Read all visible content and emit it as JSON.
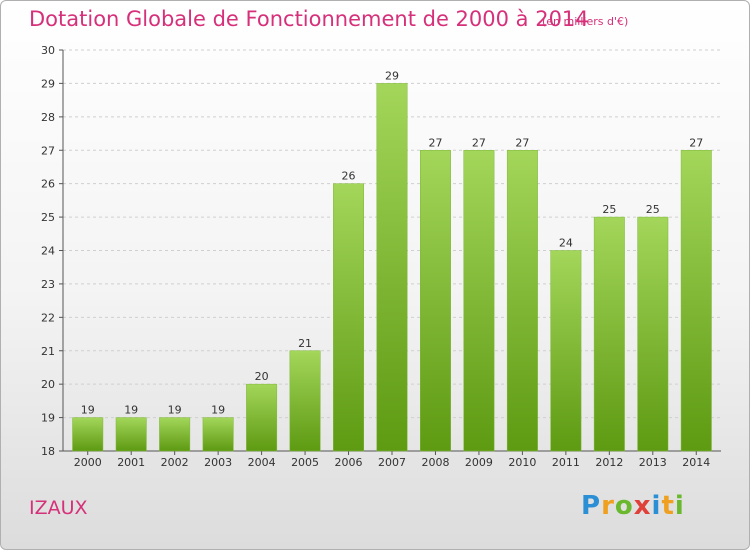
{
  "chart_data": {
    "type": "bar",
    "title": "Dotation Globale de Fonctionnement de 2000 à 2014",
    "unit_note": "(en milliers d'€)",
    "categories": [
      "2000",
      "2001",
      "2002",
      "2003",
      "2004",
      "2005",
      "2006",
      "2007",
      "2008",
      "2009",
      "2010",
      "2011",
      "2012",
      "2013",
      "2014"
    ],
    "values": [
      19,
      19,
      19,
      19,
      20,
      21,
      26,
      29,
      27,
      27,
      27,
      24,
      25,
      25,
      27
    ],
    "ylim": [
      18,
      30
    ],
    "yticks": [
      18,
      19,
      20,
      21,
      22,
      23,
      24,
      25,
      26,
      27,
      28,
      29,
      30
    ],
    "grid": true,
    "bar_color_top": "#a3d65a",
    "bar_color_bottom": "#5e9a12",
    "grid_color": "#cfcfcf"
  },
  "commune": "IZAUX",
  "logo": {
    "letters": [
      "P",
      "r",
      "o",
      "x",
      "i",
      "t",
      "i"
    ],
    "colors": [
      "#2b8fd6",
      "#f0a020",
      "#6ab82e",
      "#e0403a",
      "#2b8fd6",
      "#f0a020",
      "#6ab82e"
    ]
  }
}
